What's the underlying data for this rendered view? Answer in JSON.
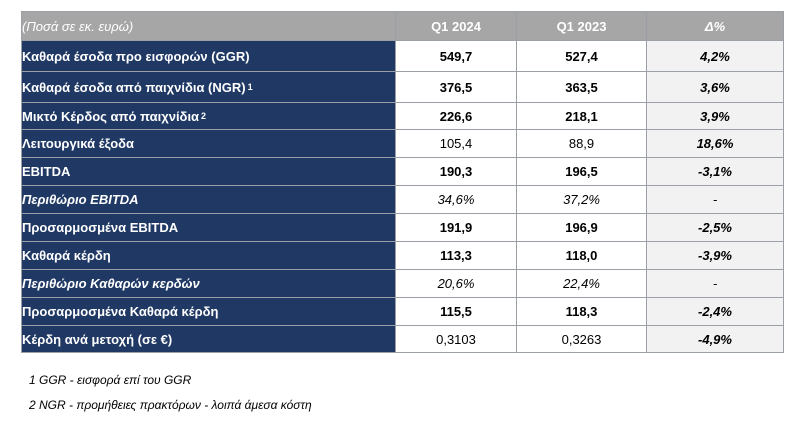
{
  "header": {
    "label": "(Ποσά σε εκ. ευρώ)",
    "col1": "Q1 2024",
    "col2": "Q1 2023",
    "col3": "Δ%"
  },
  "rows": [
    {
      "label": "Καθαρά έσοδα προ εισφορών (GGR)",
      "sup": "",
      "q1_2024": "549,7",
      "q1_2023": "527,4",
      "delta": "4,2%"
    },
    {
      "label": "Καθαρά έσοδα από παιχνίδια (NGR)",
      "sup": "1",
      "q1_2024": "376,5",
      "q1_2023": "363,5",
      "delta": "3,6%"
    },
    {
      "label": "Μικτό Κέρδος από παιχνίδια",
      "sup": "2",
      "q1_2024": "226,6",
      "q1_2023": "218,1",
      "delta": "3,9%"
    },
    {
      "label": "Λειτουργικά έξοδα",
      "sup": "",
      "q1_2024": "105,4",
      "q1_2023": "88,9",
      "delta": "18,6%"
    },
    {
      "label": "EBITDA",
      "sup": "",
      "q1_2024": "190,3",
      "q1_2023": "196,5",
      "delta": "-3,1%"
    },
    {
      "label": "Περιθώριο EBITDA",
      "sup": "",
      "q1_2024": "34,6%",
      "q1_2023": "37,2%",
      "delta": "-"
    },
    {
      "label": "Προσαρμοσμένα EBITDA",
      "sup": "",
      "q1_2024": "191,9",
      "q1_2023": "196,9",
      "delta": "-2,5%"
    },
    {
      "label": "Καθαρά κέρδη",
      "sup": "",
      "q1_2024": "113,3",
      "q1_2023": "118,0",
      "delta": "-3,9%"
    },
    {
      "label": "Περιθώριο Καθαρών κερδών",
      "sup": "",
      "q1_2024": "20,6%",
      "q1_2023": "22,4%",
      "delta": "-"
    },
    {
      "label": "Προσαρμοσμένα Καθαρά κέρδη",
      "sup": "",
      "q1_2024": "115,5",
      "q1_2023": "118,3",
      "delta": "-2,4%"
    },
    {
      "label": "Κέρδη ανά μετοχή (σε €)",
      "sup": "",
      "q1_2024": "0,3103",
      "q1_2023": "0,3263",
      "delta": "-4,9%"
    }
  ],
  "notes": {
    "note1": "1 GGR - εισφορά επί του GGR",
    "note2": "2 NGR - προμήθειες πρακτόρων - λοιπά άμεσα κόστη"
  }
}
